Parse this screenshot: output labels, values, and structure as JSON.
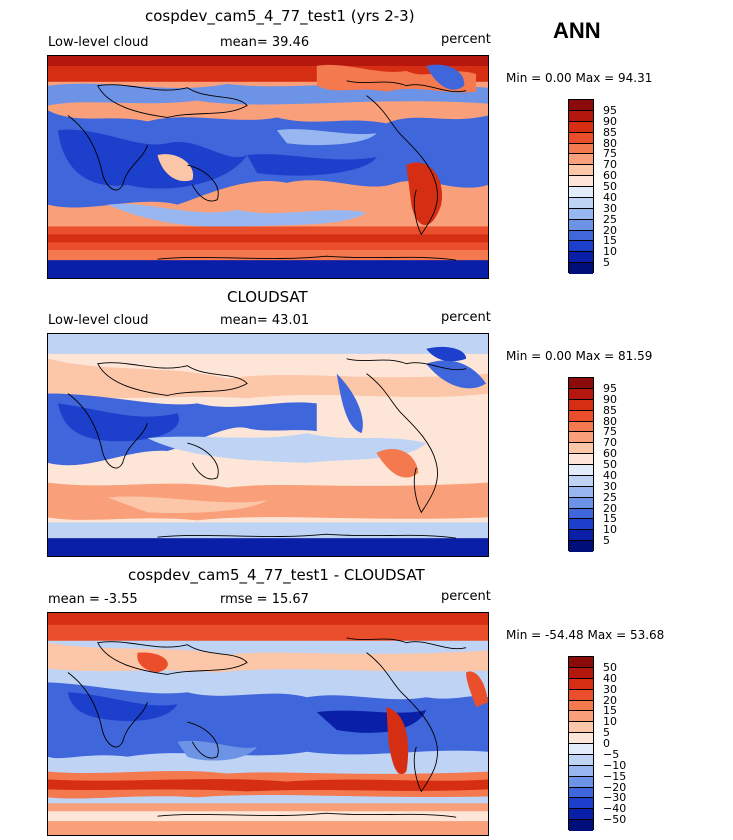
{
  "season": "ANN",
  "panels": [
    {
      "title": "cospdev_cam5_4_77_test1 (yrs 2-3)",
      "left_label": "Low-level cloud",
      "mean_label": "mean=  39.46",
      "right_label": "percent",
      "minmax": "Min =    0.00 Max =   94.31",
      "colorbar": {
        "labels": [
          "95",
          "90",
          "85",
          "80",
          "75",
          "70",
          "60",
          "50",
          "40",
          "30",
          "25",
          "20",
          "15",
          "10",
          "5"
        ],
        "colors": [
          "#8b0a0a",
          "#b3170d",
          "#d62e13",
          "#eb4e2a",
          "#f4794f",
          "#f9a07a",
          "#fcc6a8",
          "#fde6d8",
          "#e3ecfb",
          "#bfd3f5",
          "#98b7f0",
          "#6d93e6",
          "#3f66db",
          "#1c3fcc",
          "#0a1fa8",
          "#000e7a"
        ]
      }
    },
    {
      "title": "CLOUDSAT",
      "left_label": "Low-level cloud",
      "mean_label": "mean=  43.01",
      "right_label": "percent",
      "minmax": "Min =    0.00 Max =   81.59",
      "colorbar": {
        "labels": [
          "95",
          "90",
          "85",
          "80",
          "75",
          "70",
          "60",
          "50",
          "40",
          "30",
          "25",
          "20",
          "15",
          "10",
          "5"
        ],
        "colors": [
          "#8b0a0a",
          "#b3170d",
          "#d62e13",
          "#eb4e2a",
          "#f4794f",
          "#f9a07a",
          "#fcc6a8",
          "#fde6d8",
          "#e3ecfb",
          "#bfd3f5",
          "#98b7f0",
          "#6d93e6",
          "#3f66db",
          "#1c3fcc",
          "#0a1fa8",
          "#000e7a"
        ]
      }
    },
    {
      "title": "cospdev_cam5_4_77_test1 - CLOUDSAT",
      "left_label": "mean =   -3.55",
      "mean_label": "rmse =   15.67",
      "right_label": "percent",
      "minmax": "Min =  -54.48 Max =   53.68",
      "colorbar": {
        "labels": [
          "50",
          "40",
          "30",
          "20",
          "15",
          "10",
          "5",
          "0",
          "−5",
          "−10",
          "−15",
          "−20",
          "−30",
          "−40",
          "−50"
        ],
        "colors": [
          "#8b0a0a",
          "#b3170d",
          "#d62e13",
          "#eb4e2a",
          "#f4794f",
          "#f9a07a",
          "#fcc6a8",
          "#fde6d8",
          "#e3ecfb",
          "#bfd3f5",
          "#98b7f0",
          "#6d93e6",
          "#3f66db",
          "#1c3fcc",
          "#0a1fa8",
          "#000e7a"
        ]
      }
    }
  ]
}
